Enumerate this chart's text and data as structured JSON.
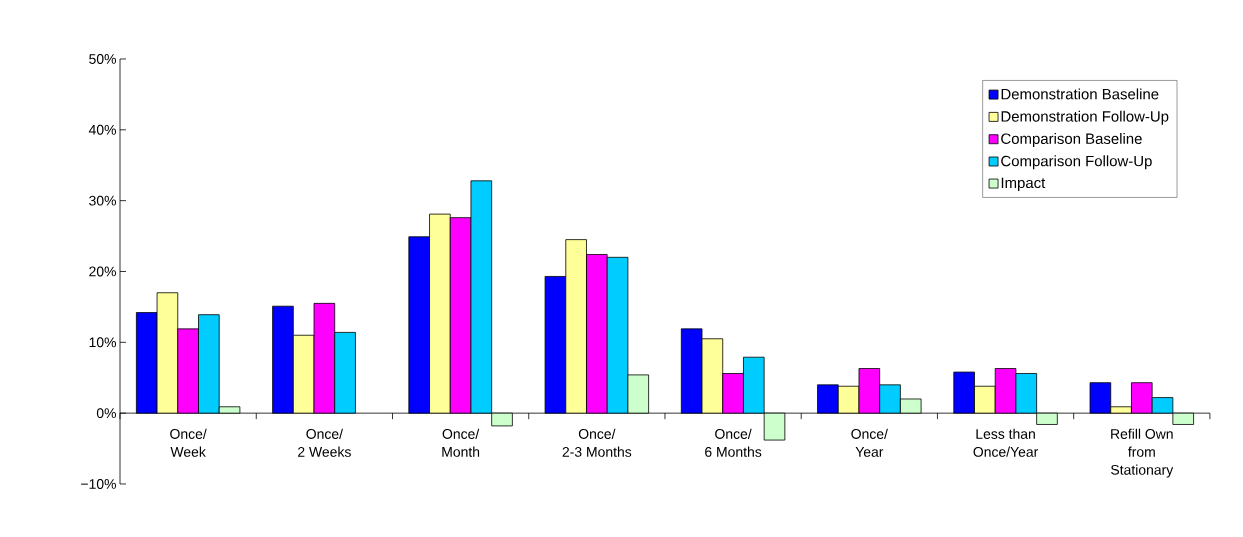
{
  "chart_data": {
    "type": "bar",
    "categories": [
      "Once/\nWeek",
      "Once/\n2 Weeks",
      "Once/\nMonth",
      "Once/\n2-3 Months",
      "Once/\n6 Months",
      "Once/\nYear",
      "Less than\nOnce/Year",
      "Refill Own\nfrom\nStationary"
    ],
    "series": [
      {
        "name": "Demonstration Baseline",
        "color": "#0000ff",
        "values": [
          14.2,
          15.1,
          24.9,
          19.3,
          11.9,
          4.0,
          5.8,
          4.3
        ]
      },
      {
        "name": "Demonstration Follow-Up",
        "color": "#ffff99",
        "values": [
          17.0,
          11.0,
          28.1,
          24.5,
          10.5,
          3.8,
          3.8,
          0.9
        ]
      },
      {
        "name": "Comparison Baseline",
        "color": "#ff00ff",
        "values": [
          11.9,
          15.5,
          27.6,
          22.4,
          5.6,
          6.3,
          6.3,
          4.3
        ]
      },
      {
        "name": "Comparison Follow-Up",
        "color": "#00ccff",
        "values": [
          13.9,
          11.4,
          32.8,
          22.0,
          7.9,
          4.0,
          5.6,
          2.2
        ]
      },
      {
        "name": "Impact",
        "color": "#ccffcc",
        "values": [
          0.9,
          null,
          -1.8,
          5.4,
          -3.8,
          2.0,
          -1.6,
          -1.6
        ]
      }
    ],
    "ylim": [
      -10,
      50
    ],
    "yticks": [
      {
        "value": -10,
        "label": "−10%"
      },
      {
        "value": 0,
        "label": "0%"
      },
      {
        "value": 10,
        "label": "10%"
      },
      {
        "value": 20,
        "label": "20%"
      },
      {
        "value": 30,
        "label": "30%"
      },
      {
        "value": 40,
        "label": "40%"
      },
      {
        "value": 50,
        "label": "50%"
      }
    ],
    "grid": false,
    "legend": "top right"
  }
}
